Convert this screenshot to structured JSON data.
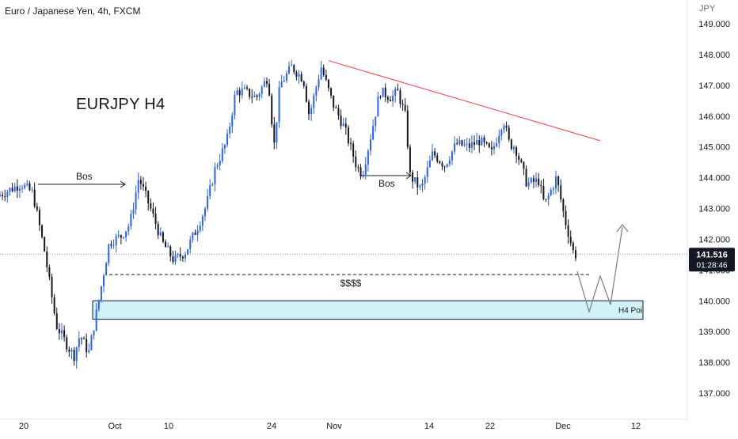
{
  "header": {
    "symbol_title": "Euro / Japanese Yen, 4h, FXCM",
    "chart_label": "EURJPY H4",
    "price_axis_unit": "JPY"
  },
  "colors": {
    "up_candle": "#2962ff",
    "down_candle": "#131722",
    "trendline": "#f23645",
    "poi_fill": "#d1f2f7",
    "poi_border": "#131722",
    "projection": "#787b86",
    "axis_text": "#131722",
    "price_tag_bg": "#131722"
  },
  "annotations": {
    "bos_1": "Bos",
    "bos_2": "Bos",
    "liquidity": "$$$$",
    "poi": "H4 Poi"
  },
  "last_price": {
    "value": "141.516",
    "countdown": "01:28:46"
  },
  "chart_data": {
    "type": "candlestick",
    "title": "Euro / Japanese Yen, 4h, FXCM",
    "y_unit": "JPY",
    "y_ticks": [
      "149.000",
      "148.000",
      "147.000",
      "146.000",
      "145.000",
      "144.000",
      "143.000",
      "142.000",
      "141.000",
      "140.000",
      "139.000",
      "138.000",
      "137.000"
    ],
    "x_ticks": [
      "20",
      "Oct",
      "10",
      "24",
      "Nov",
      "14",
      "22",
      "Dec",
      "12"
    ],
    "ylim": [
      136.9,
      149.1
    ],
    "price_path": [
      {
        "t": 0,
        "p": 143.4
      },
      {
        "t": 2,
        "p": 143.6
      },
      {
        "t": 4,
        "p": 143.8
      },
      {
        "t": 6,
        "p": 143.5
      },
      {
        "t": 8,
        "p": 141.6
      },
      {
        "t": 10,
        "p": 139.2
      },
      {
        "t": 12,
        "p": 138.5
      },
      {
        "t": 13,
        "p": 138.2
      },
      {
        "t": 14,
        "p": 138.9
      },
      {
        "t": 15.5,
        "p": 138.3
      },
      {
        "t": 17,
        "p": 139.8
      },
      {
        "t": 19,
        "p": 141.9
      },
      {
        "t": 21,
        "p": 142.1
      },
      {
        "t": 22.5,
        "p": 142.5
      },
      {
        "t": 24,
        "p": 144.0
      },
      {
        "t": 26,
        "p": 143.0
      },
      {
        "t": 28,
        "p": 141.9
      },
      {
        "t": 30,
        "p": 141.3
      },
      {
        "t": 32,
        "p": 141.6
      },
      {
        "t": 34,
        "p": 142.4
      },
      {
        "t": 35.5,
        "p": 143.1
      },
      {
        "t": 37,
        "p": 144.3
      },
      {
        "t": 39,
        "p": 145.2
      },
      {
        "t": 40.5,
        "p": 146.8
      },
      {
        "t": 42,
        "p": 146.8
      },
      {
        "t": 44,
        "p": 146.6
      },
      {
        "t": 46,
        "p": 147.3
      },
      {
        "t": 47,
        "p": 145.0
      },
      {
        "t": 48,
        "p": 147.0
      },
      {
        "t": 50,
        "p": 147.6
      },
      {
        "t": 52,
        "p": 147.2
      },
      {
        "t": 53,
        "p": 146.0
      },
      {
        "t": 55,
        "p": 147.6
      },
      {
        "t": 57,
        "p": 146.4
      },
      {
        "t": 59,
        "p": 145.6
      },
      {
        "t": 61,
        "p": 144.4
      },
      {
        "t": 62,
        "p": 144.1
      },
      {
        "t": 63.5,
        "p": 145.4
      },
      {
        "t": 65,
        "p": 146.8
      },
      {
        "t": 67,
        "p": 146.6
      },
      {
        "t": 68,
        "p": 146.8
      },
      {
        "t": 69.5,
        "p": 145.9
      },
      {
        "t": 70,
        "p": 144.1
      },
      {
        "t": 72,
        "p": 143.6
      },
      {
        "t": 74,
        "p": 144.8
      },
      {
        "t": 76,
        "p": 144.4
      },
      {
        "t": 78,
        "p": 145.1
      },
      {
        "t": 80,
        "p": 145.0
      },
      {
        "t": 82,
        "p": 145.2
      },
      {
        "t": 84,
        "p": 144.8
      },
      {
        "t": 86,
        "p": 145.9
      },
      {
        "t": 87,
        "p": 145.1
      },
      {
        "t": 88,
        "p": 145.0
      },
      {
        "t": 90,
        "p": 143.8
      },
      {
        "t": 92,
        "p": 143.9
      },
      {
        "t": 93,
        "p": 143.1
      },
      {
        "t": 95,
        "p": 144.0
      },
      {
        "t": 96.5,
        "p": 142.6
      },
      {
        "t": 98,
        "p": 141.5
      }
    ],
    "annotation_levels": {
      "bos_1": 143.8,
      "bos_2": 144.0,
      "liquidity": 140.85,
      "poi_top": 140.0,
      "poi_bottom": 139.4,
      "trendline_start": 147.8,
      "trendline_end": 145.2,
      "last_price": 141.516
    }
  }
}
